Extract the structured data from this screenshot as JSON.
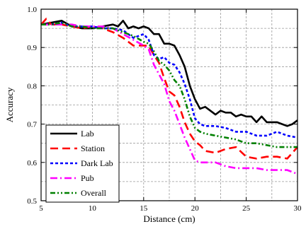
{
  "chart_data": {
    "type": "line",
    "xlabel": "Distance (cm)",
    "ylabel": "Accuracy",
    "xlim": [
      5,
      30
    ],
    "ylim": [
      0.5,
      1.0
    ],
    "xticks": [
      5,
      10,
      15,
      20,
      25,
      30
    ],
    "yticks": [
      0.5,
      0.6,
      0.7,
      0.8,
      0.9,
      1.0
    ],
    "ytick_labels": [
      "0.5",
      "0.6",
      "0.7",
      "0.8",
      "0.9",
      "1.0"
    ],
    "grid": true,
    "legend_position": "bottom-left",
    "series": [
      {
        "name": "Lab",
        "color": "#000000",
        "dash": "solid",
        "x": [
          5,
          6,
          7,
          8,
          9,
          10,
          11,
          12,
          12.5,
          13,
          13.5,
          14,
          14.5,
          15,
          15.5,
          16,
          16.5,
          17,
          17.5,
          18,
          18.5,
          19,
          19.5,
          20,
          20.5,
          21,
          21.5,
          22,
          22.5,
          23,
          23.5,
          24,
          24.5,
          25,
          25.5,
          26,
          26.5,
          27,
          27.5,
          28,
          28.5,
          29,
          29.5,
          30
        ],
        "y": [
          0.96,
          0.965,
          0.97,
          0.955,
          0.95,
          0.95,
          0.955,
          0.96,
          0.955,
          0.97,
          0.95,
          0.955,
          0.95,
          0.955,
          0.95,
          0.935,
          0.935,
          0.91,
          0.91,
          0.905,
          0.88,
          0.85,
          0.8,
          0.765,
          0.74,
          0.745,
          0.735,
          0.725,
          0.735,
          0.73,
          0.73,
          0.72,
          0.725,
          0.72,
          0.72,
          0.705,
          0.72,
          0.705,
          0.705,
          0.705,
          0.7,
          0.695,
          0.7,
          0.71
        ]
      },
      {
        "name": "Station",
        "color": "#ff0000",
        "dash": "long-dash",
        "x": [
          5,
          5.5,
          6,
          7,
          8,
          9,
          10,
          11,
          12,
          13,
          14,
          15,
          15.5,
          16,
          16.5,
          17,
          17.5,
          18,
          18.5,
          19,
          19.5,
          20,
          20.5,
          21,
          22,
          23,
          24,
          25,
          26,
          27,
          28,
          29,
          30
        ],
        "y": [
          0.96,
          0.975,
          0.96,
          0.96,
          0.955,
          0.95,
          0.955,
          0.95,
          0.94,
          0.925,
          0.905,
          0.905,
          0.905,
          0.88,
          0.86,
          0.82,
          0.785,
          0.775,
          0.745,
          0.705,
          0.675,
          0.655,
          0.645,
          0.63,
          0.625,
          0.635,
          0.64,
          0.615,
          0.61,
          0.615,
          0.615,
          0.61,
          0.64
        ]
      },
      {
        "name": "Dark Lab",
        "color": "#0000ff",
        "dash": "short-dash",
        "x": [
          5,
          6,
          7,
          8,
          9,
          10,
          11,
          12,
          13,
          14,
          15,
          15.5,
          16,
          16.5,
          17,
          17.5,
          18,
          18.5,
          19,
          19.5,
          20,
          20.5,
          21,
          22,
          23,
          24,
          25,
          26,
          27,
          28,
          29,
          30
        ],
        "y": [
          0.96,
          0.96,
          0.965,
          0.955,
          0.955,
          0.955,
          0.95,
          0.95,
          0.945,
          0.925,
          0.935,
          0.92,
          0.88,
          0.87,
          0.875,
          0.86,
          0.855,
          0.835,
          0.805,
          0.765,
          0.715,
          0.7,
          0.695,
          0.695,
          0.69,
          0.68,
          0.68,
          0.67,
          0.67,
          0.68,
          0.67,
          0.665
        ]
      },
      {
        "name": "Pub",
        "color": "#ff00ff",
        "dash": "dash-dot",
        "x": [
          5,
          6,
          7,
          8,
          9,
          10,
          11,
          12,
          13,
          14,
          15,
          15.5,
          16,
          16.5,
          17,
          17.5,
          18,
          18.5,
          19,
          19.5,
          20,
          20.5,
          21,
          22,
          23,
          24,
          25,
          26,
          27,
          28,
          29,
          30
        ],
        "y": [
          0.96,
          0.96,
          0.96,
          0.96,
          0.955,
          0.955,
          0.955,
          0.95,
          0.935,
          0.92,
          0.905,
          0.895,
          0.855,
          0.83,
          0.805,
          0.76,
          0.735,
          0.7,
          0.665,
          0.635,
          0.605,
          0.6,
          0.6,
          0.6,
          0.59,
          0.585,
          0.585,
          0.585,
          0.58,
          0.58,
          0.58,
          0.57
        ]
      },
      {
        "name": "Overall",
        "color": "#008000",
        "dash": "dash-dot-dot",
        "x": [
          5,
          6,
          7,
          8,
          9,
          10,
          11,
          12,
          13,
          14,
          15,
          15.5,
          16,
          16.5,
          17,
          17.5,
          18,
          18.5,
          19,
          19.5,
          20,
          20.5,
          21,
          22,
          23,
          24,
          25,
          26,
          27,
          28,
          29,
          30
        ],
        "y": [
          0.96,
          0.96,
          0.965,
          0.955,
          0.955,
          0.95,
          0.95,
          0.95,
          0.94,
          0.93,
          0.915,
          0.91,
          0.89,
          0.865,
          0.855,
          0.84,
          0.815,
          0.8,
          0.765,
          0.72,
          0.69,
          0.68,
          0.675,
          0.67,
          0.665,
          0.66,
          0.65,
          0.65,
          0.645,
          0.64,
          0.64,
          0.64
        ]
      }
    ]
  }
}
